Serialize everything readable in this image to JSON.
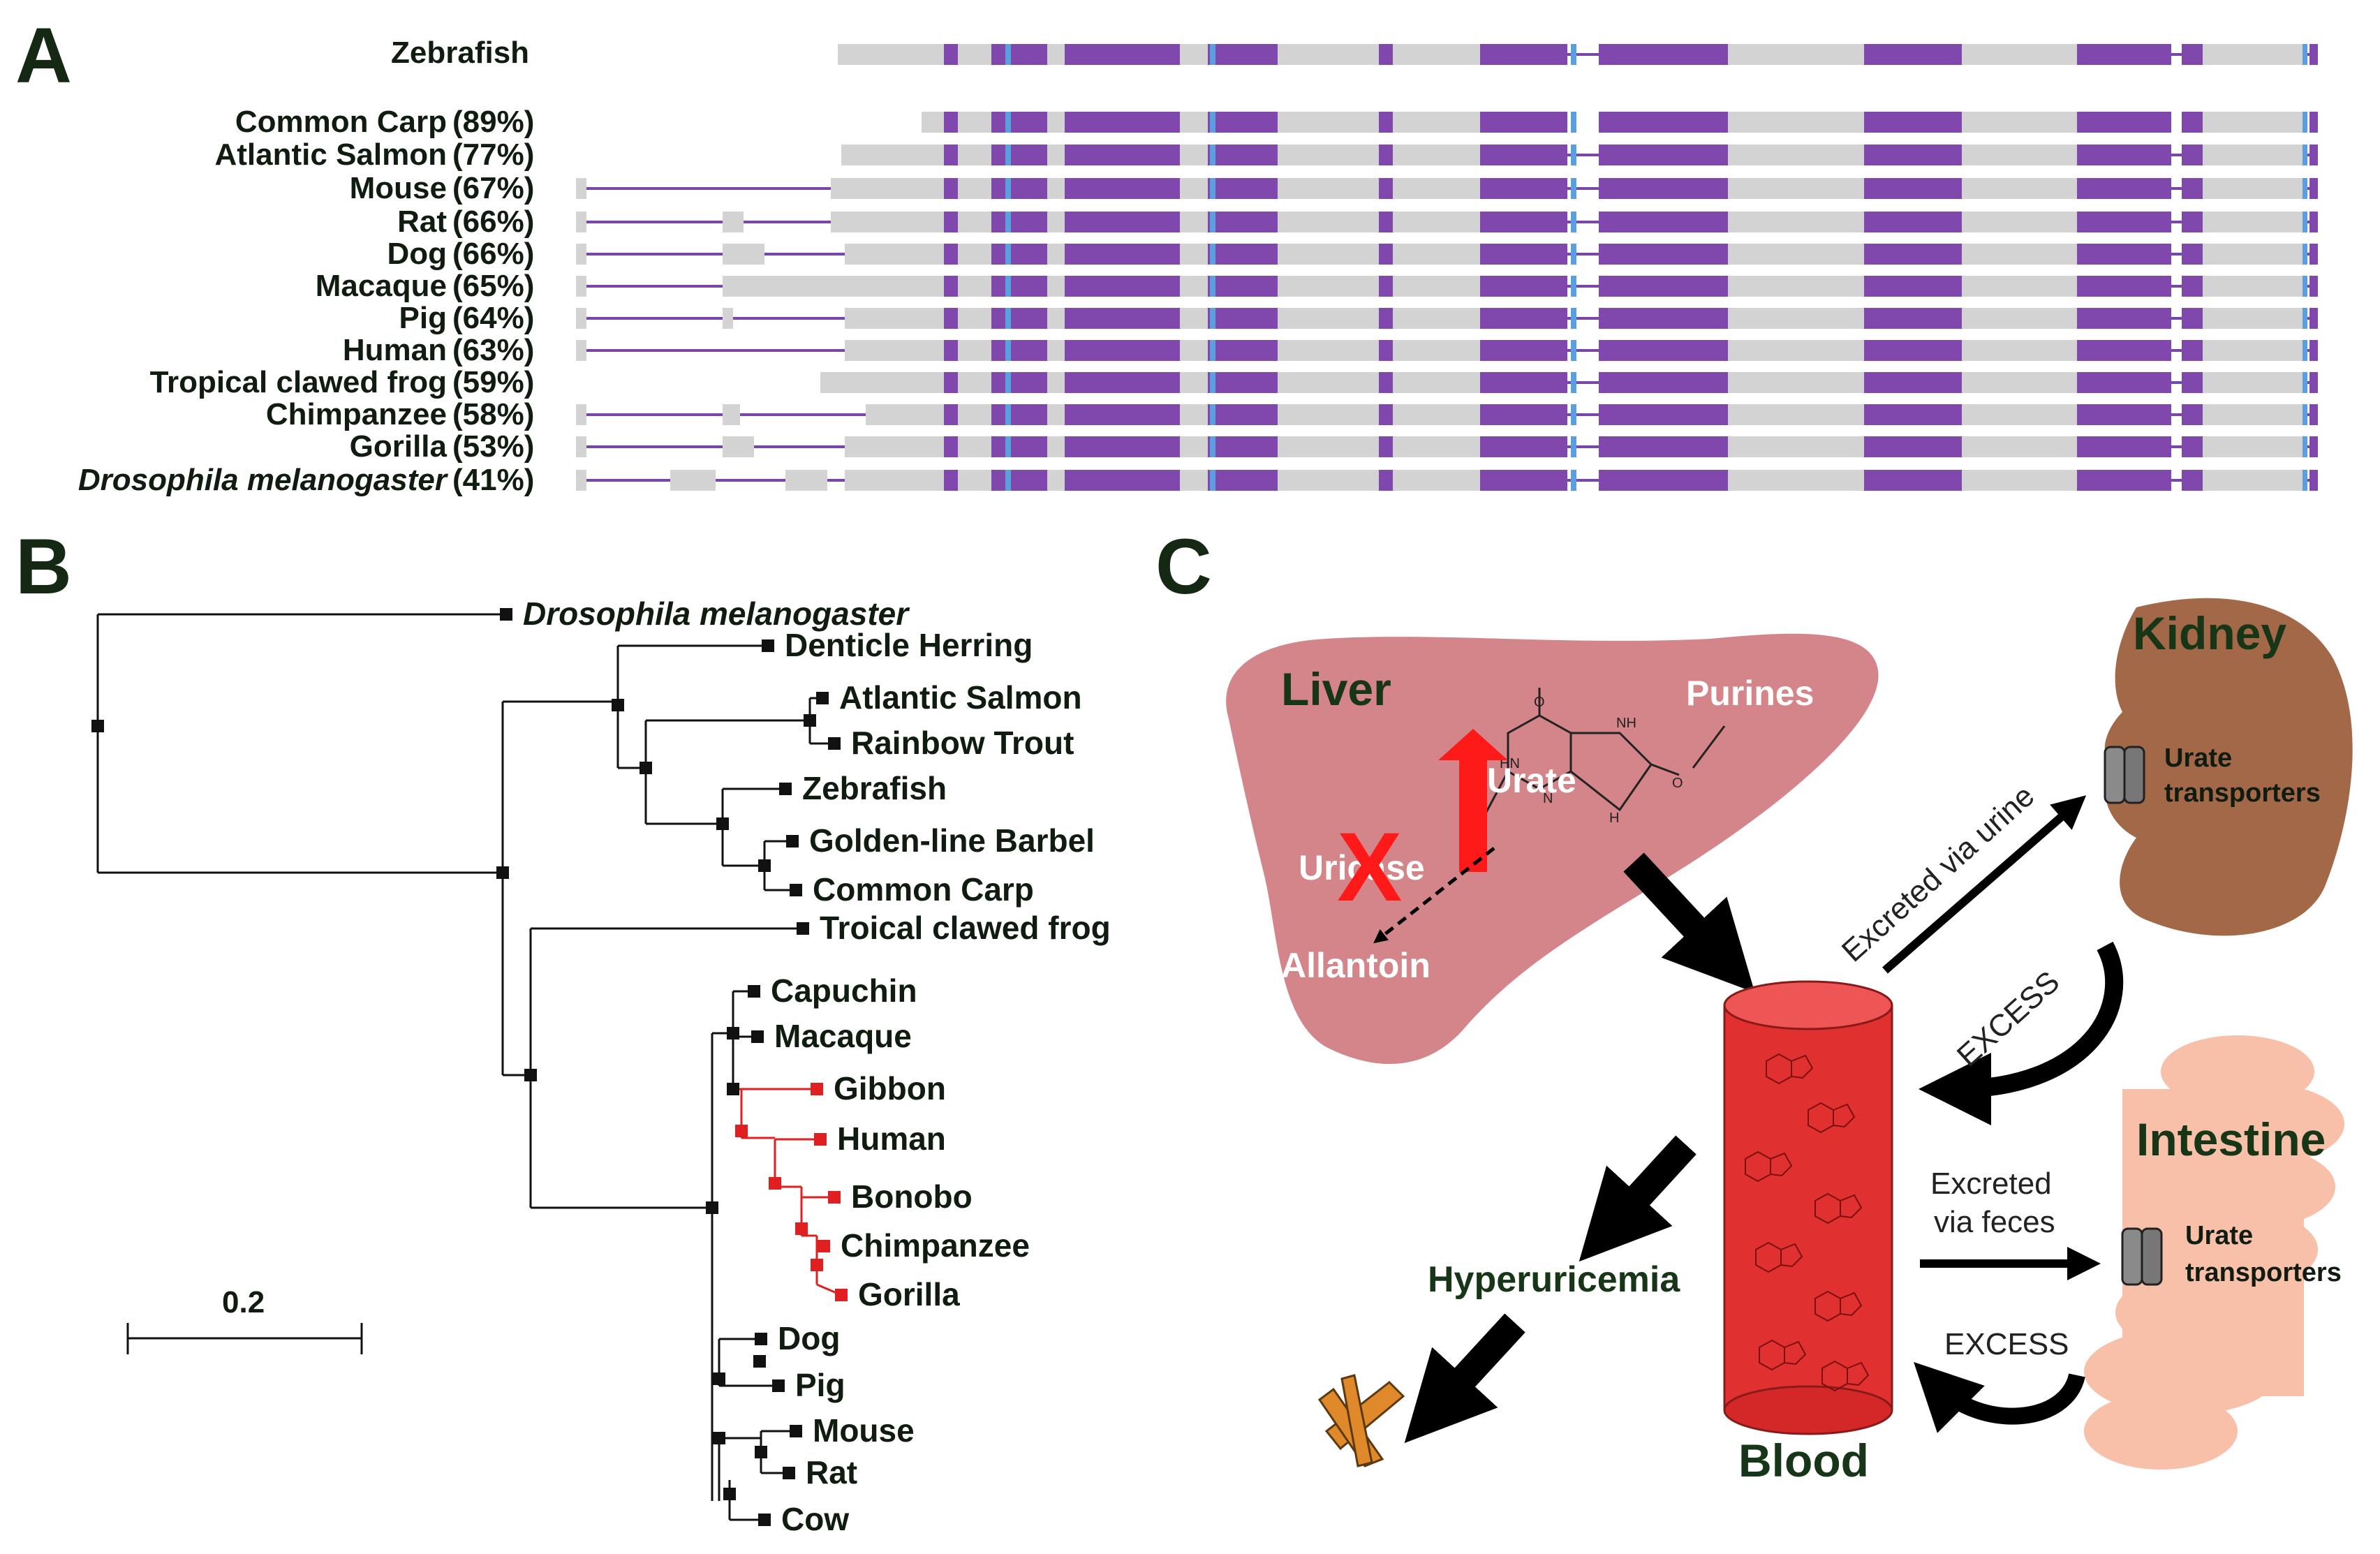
{
  "panel_a": {
    "letter": "A",
    "reference": "Zebrafish",
    "species": [
      {
        "name": "Common Carp",
        "pct": "(89%)",
        "italic": false
      },
      {
        "name": "Atlantic Salmon",
        "pct": "(77%)",
        "italic": false
      },
      {
        "name": "Mouse",
        "pct": "(67%)",
        "italic": false
      },
      {
        "name": "Rat",
        "pct": "(66%)",
        "italic": false
      },
      {
        "name": "Dog",
        "pct": "(66%)",
        "italic": false
      },
      {
        "name": "Macaque",
        "pct": "(65%)",
        "italic": false
      },
      {
        "name": "Pig",
        "pct": "(64%)",
        "italic": false
      },
      {
        "name": "Human",
        "pct": "(63%)",
        "italic": false
      },
      {
        "name": "Tropical clawed frog",
        "pct": "(59%)",
        "italic": false
      },
      {
        "name": "Chimpanzee",
        "pct": "(58%)",
        "italic": false
      },
      {
        "name": "Gorilla",
        "pct": "(53%)",
        "italic": false
      },
      {
        "name": "Drosophila melanogaster",
        "pct": "(41%)",
        "italic": true
      }
    ],
    "colors": {
      "exon": "#8048ad",
      "gap": "#d3d3d3",
      "line": "#7a45a8",
      "highlight": "#5aa0e0"
    }
  },
  "panel_b": {
    "letter": "B",
    "taxa": [
      "Drosophila melanogaster",
      "Denticle Herring",
      "Atlantic Salmon",
      "Rainbow Trout",
      "Zebrafish",
      "Golden-line Barbel",
      "Common Carp",
      "Troical clawed frog",
      "Capuchin",
      "Macaque",
      "Gibbon",
      "Human",
      "Bonobo",
      "Chimpanzee",
      "Gorilla",
      "Dog",
      "Pig",
      "Mouse",
      "Rat",
      "Cow"
    ],
    "scale_label": "0.2",
    "colors": {
      "normal": "#111111",
      "hominoid": "#e02020"
    }
  },
  "panel_c": {
    "letter": "C",
    "liver": "Liver",
    "purines": "Purines",
    "urate": "Urate",
    "uricase": "Uricase",
    "allantoin": "Allantoin",
    "blood": "Blood",
    "hyperuricemia": "Hyperuricemia",
    "kidney": "Kidney",
    "intestine": "Intestine",
    "urate_transporters": [
      "Urate",
      "transporters"
    ],
    "excreted_urine": "Excreted via urine",
    "excreted_feces": [
      "Excreted",
      "via feces"
    ],
    "excess": "EXCESS",
    "colors": {
      "liver": "#d4858a",
      "kidney": "#a36848",
      "intestine": "#f8c0a8",
      "blood": "#e03030",
      "cross": "#ff1a1a"
    }
  }
}
